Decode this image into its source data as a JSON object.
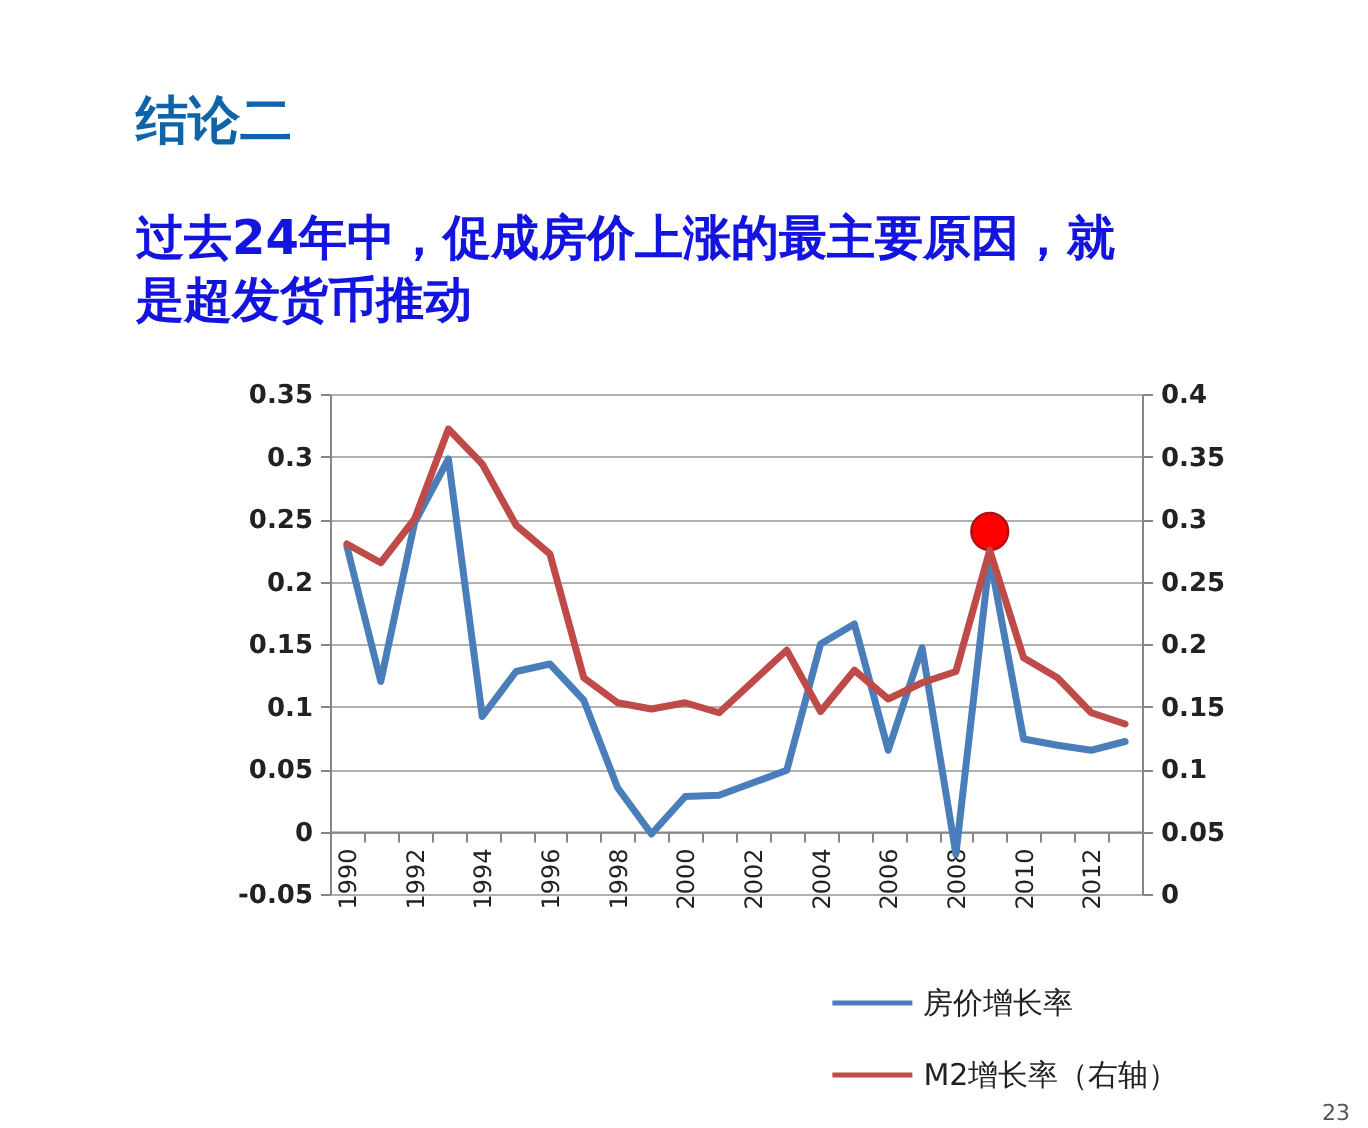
{
  "chart_data": {
    "type": "line",
    "title": "结论二",
    "subtitle": "过去24年中，促成房价上涨的最主要原因，就是超发货币推动",
    "categories": [
      "1990",
      null,
      "1992",
      null,
      "1994",
      null,
      "1996",
      null,
      "1998",
      null,
      "2000",
      null,
      "2002",
      null,
      "2004",
      null,
      "2006",
      null,
      "2008",
      null,
      "2010",
      null,
      "2012",
      null
    ],
    "series": [
      {
        "name": "房价增长率",
        "color": "#4a7ebb",
        "values": [
          0.228,
          0.12,
          0.247,
          0.298,
          0.092,
          0.128,
          0.134,
          0.105,
          0.035,
          -0.002,
          0.028,
          0.029,
          0.039,
          0.049,
          0.15,
          0.166,
          0.065,
          0.147,
          -0.018,
          0.22,
          0.074,
          0.069,
          0.065,
          0.072
        ]
      },
      {
        "name": "M2增长率（右轴）",
        "color": "#be4b48",
        "axis": "y2",
        "values": [
          0.28,
          0.265,
          0.3,
          0.372,
          0.344,
          0.295,
          0.272,
          0.173,
          0.153,
          0.148,
          0.153,
          0.145,
          0.17,
          0.195,
          0.146,
          0.179,
          0.156,
          0.169,
          0.178,
          0.275,
          0.189,
          0.173,
          0.145,
          0.136
        ]
      },
      {
        "type": "scatter",
        "marker": "circle",
        "color": "#ff0000",
        "values": [
          null,
          null,
          null,
          null,
          null,
          null,
          null,
          null,
          null,
          null,
          null,
          null,
          null,
          null,
          null,
          null,
          null,
          null,
          null,
          0.24,
          null,
          null,
          null,
          null
        ]
      }
    ],
    "ylim": [
      -0.05,
      0.35
    ],
    "yticks": [
      -0.05,
      0,
      0.05,
      0.1,
      0.15,
      0.2,
      0.25,
      0.3,
      0.35
    ],
    "y2lim": [
      0,
      0.4
    ],
    "y2ticks": [
      0,
      0.05,
      0.1,
      0.15,
      0.2,
      0.25,
      0.3,
      0.35,
      0.4
    ],
    "grid": "y",
    "legend": "bottom",
    "line_style": "solid",
    "annotations": [
      "23"
    ]
  }
}
